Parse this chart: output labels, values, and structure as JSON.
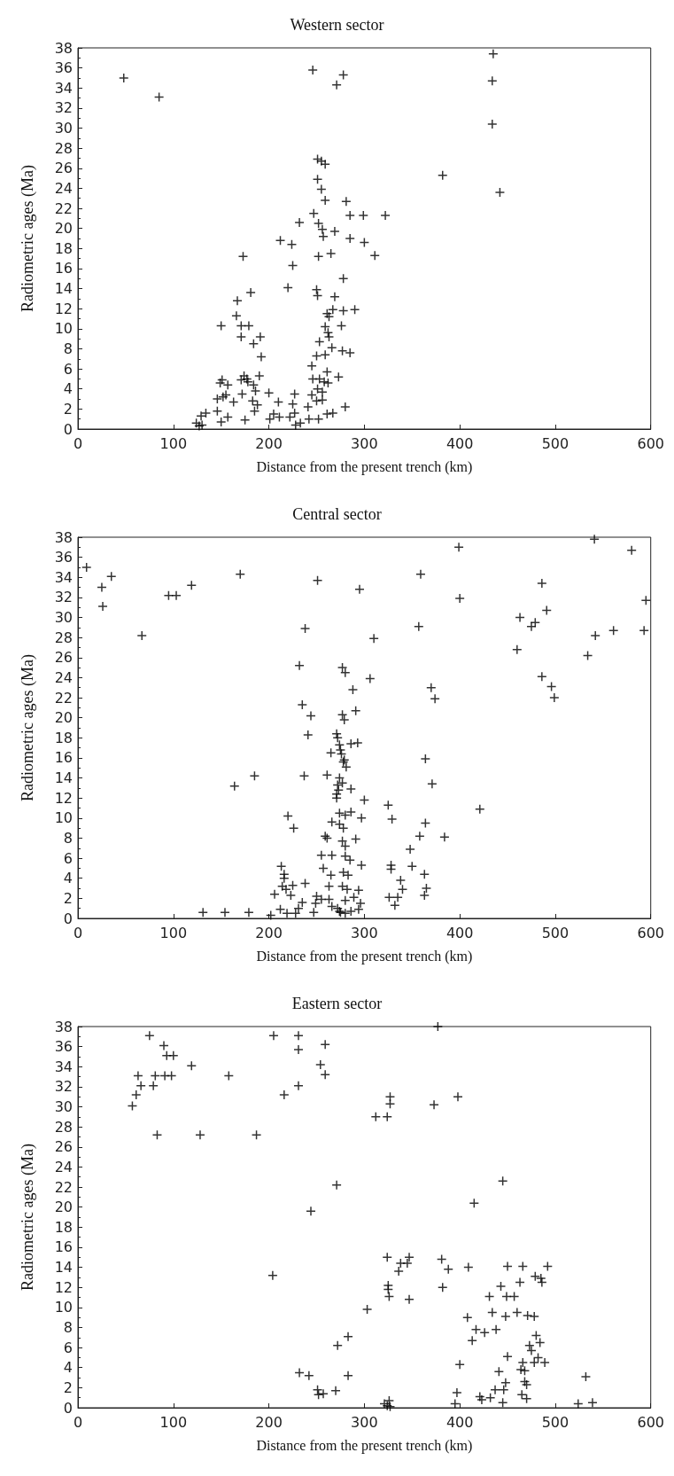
{
  "chart_data": [
    {
      "type": "scatter",
      "title": "Western sector",
      "xlabel": "Distance from the present trench (km)",
      "ylabel": "Radiometric ages (Ma)",
      "xlim": [
        0,
        600
      ],
      "xticks": [
        0,
        100,
        200,
        300,
        400,
        500,
        600
      ],
      "ylim": [
        0,
        38
      ],
      "yticks": [
        0,
        2,
        4,
        6,
        8,
        10,
        12,
        14,
        16,
        18,
        20,
        22,
        24,
        26,
        28,
        30,
        32,
        34,
        36,
        38
      ],
      "marker": "cross",
      "color": "#000000",
      "x": [
        48,
        85,
        246,
        278,
        271,
        435,
        434,
        434,
        382,
        442,
        281,
        285,
        299,
        322,
        285,
        300,
        311,
        278,
        278,
        290,
        285,
        280,
        251,
        255,
        259,
        251,
        255,
        259,
        247,
        232,
        252,
        256,
        269,
        257,
        212,
        224,
        252,
        265,
        173,
        225,
        220,
        250,
        251,
        269,
        181,
        167,
        166,
        171,
        179,
        150,
        171,
        191,
        184,
        192,
        267,
        261,
        263,
        259,
        253,
        262,
        263,
        276,
        259,
        250,
        266,
        277,
        245,
        261,
        273,
        246,
        253,
        258,
        262,
        251,
        245,
        256,
        250,
        241,
        256,
        252,
        261,
        267,
        242,
        233,
        228,
        222,
        227,
        225,
        227,
        211,
        205,
        201,
        210,
        200,
        188,
        183,
        186,
        190,
        184,
        178,
        174,
        171,
        177,
        172,
        163,
        152,
        146,
        155,
        149,
        151,
        157,
        146,
        157,
        150,
        175,
        185,
        134,
        129,
        124,
        127,
        130
      ],
      "values": [
        35.0,
        33.1,
        35.8,
        35.3,
        34.3,
        37.4,
        34.7,
        30.4,
        25.3,
        23.6,
        22.7,
        21.3,
        21.3,
        21.3,
        19.0,
        18.6,
        17.3,
        15.0,
        11.8,
        11.9,
        7.6,
        2.2,
        26.9,
        26.7,
        26.4,
        24.9,
        23.9,
        22.8,
        21.5,
        20.6,
        20.5,
        19.9,
        19.7,
        19.2,
        18.8,
        18.4,
        17.2,
        17.5,
        17.2,
        16.3,
        14.1,
        13.9,
        13.3,
        13.2,
        13.6,
        12.8,
        11.3,
        10.3,
        10.3,
        10.3,
        9.2,
        9.2,
        8.5,
        7.2,
        11.9,
        11.5,
        11.2,
        10.2,
        8.7,
        9.6,
        9.2,
        10.3,
        7.4,
        7.3,
        8.1,
        7.8,
        6.3,
        5.7,
        5.2,
        5.0,
        5.0,
        4.7,
        4.6,
        4.0,
        3.4,
        3.7,
        2.8,
        2.2,
        2.9,
        1.0,
        1.5,
        1.6,
        1.0,
        0.6,
        0.4,
        1.2,
        1.6,
        2.5,
        3.5,
        1.2,
        1.5,
        1.0,
        2.7,
        3.6,
        2.4,
        2.8,
        3.8,
        5.3,
        4.4,
        4.7,
        5.3,
        4.9,
        5.0,
        3.5,
        2.7,
        3.2,
        3.0,
        3.4,
        4.6,
        4.9,
        4.4,
        1.8,
        1.2,
        0.7,
        0.9,
        1.8,
        1.6,
        1.3,
        0.6,
        0.3,
        0.4
      ]
    },
    {
      "type": "scatter",
      "title": "Central sector",
      "xlabel": "Distance from the present trench (km)",
      "ylabel": "Radiometric ages (Ma)",
      "xlim": [
        0,
        600
      ],
      "xticks": [
        0,
        100,
        200,
        300,
        400,
        500,
        600
      ],
      "ylim": [
        0,
        38
      ],
      "yticks": [
        0,
        2,
        4,
        6,
        8,
        10,
        12,
        14,
        16,
        18,
        20,
        22,
        24,
        26,
        28,
        30,
        32,
        34,
        36,
        38
      ],
      "marker": "cross",
      "color": "#000000",
      "x": [
        9,
        25,
        35,
        26,
        67,
        95,
        103,
        119,
        170,
        251,
        238,
        232,
        277,
        235,
        244,
        277,
        241,
        271,
        274,
        265,
        276,
        278,
        164,
        185,
        237,
        261,
        274,
        272,
        271,
        220,
        226,
        274,
        280,
        266,
        274,
        278,
        277,
        259,
        261,
        255,
        266,
        280,
        257,
        265,
        278,
        213,
        216,
        216,
        214,
        218,
        225,
        223,
        206,
        238,
        263,
        277,
        250,
        255,
        263,
        249,
        235,
        231,
        247,
        212,
        219,
        228,
        202,
        131,
        154,
        179,
        266,
        272,
        275,
        280,
        541,
        399,
        359,
        486,
        295,
        400,
        491,
        463,
        479,
        475,
        357,
        542,
        310,
        460,
        534,
        280,
        306,
        486,
        496,
        499,
        370,
        374,
        288,
        291,
        279,
        272,
        286,
        293,
        275,
        279,
        281,
        364,
        371,
        277,
        273,
        286,
        271,
        300,
        325,
        421,
        329,
        364,
        358,
        384,
        348,
        350,
        328,
        328,
        338,
        340,
        363,
        365,
        363,
        326,
        335,
        332,
        286,
        297,
        291,
        280,
        285,
        297,
        283,
        282,
        294,
        289,
        296,
        294,
        286,
        280,
        274,
        580,
        595,
        593,
        561
      ],
      "values": [
        35.0,
        33.0,
        34.1,
        31.1,
        28.2,
        32.2,
        32.2,
        33.2,
        34.3,
        33.7,
        28.9,
        25.2,
        25.0,
        21.3,
        20.2,
        20.3,
        18.3,
        18.4,
        17.3,
        16.5,
        16.4,
        15.6,
        13.2,
        14.2,
        14.2,
        14.3,
        14.0,
        13.3,
        12.4,
        10.2,
        9.0,
        10.5,
        10.3,
        9.6,
        9.4,
        9.0,
        7.7,
        8.2,
        8.0,
        6.3,
        6.3,
        6.2,
        5.0,
        4.3,
        4.6,
        5.2,
        4.4,
        4.0,
        3.2,
        2.9,
        3.3,
        2.3,
        2.4,
        3.5,
        3.2,
        3.2,
        2.2,
        1.9,
        1.9,
        1.5,
        1.6,
        1.0,
        0.6,
        0.9,
        0.5,
        0.5,
        0.3,
        0.6,
        0.6,
        0.6,
        1.2,
        1.0,
        0.6,
        1.8,
        37.8,
        37.0,
        34.3,
        33.4,
        32.8,
        31.9,
        30.7,
        30.0,
        29.5,
        29.1,
        29.1,
        28.2,
        27.9,
        26.8,
        26.2,
        24.5,
        23.9,
        24.1,
        23.1,
        22.0,
        23.0,
        21.9,
        22.8,
        20.7,
        19.8,
        18.0,
        17.4,
        17.5,
        16.8,
        15.8,
        15.1,
        15.9,
        13.4,
        13.5,
        12.8,
        12.9,
        12.0,
        11.8,
        11.3,
        10.9,
        9.9,
        9.5,
        8.2,
        8.1,
        6.9,
        5.2,
        5.3,
        4.9,
        3.8,
        2.9,
        4.4,
        3.0,
        2.3,
        2.1,
        2.1,
        1.3,
        10.6,
        10.0,
        7.9,
        7.2,
        5.8,
        5.3,
        4.3,
        2.9,
        2.8,
        2.1,
        1.5,
        0.9,
        0.7,
        0.5,
        0.7,
        36.7,
        31.7,
        28.7,
        28.7
      ]
    },
    {
      "type": "scatter",
      "title": "Eastern sector",
      "xlabel": "Distance from the present trench (km)",
      "ylabel": "Radiometric ages (Ma)",
      "xlim": [
        0,
        600
      ],
      "xticks": [
        0,
        100,
        200,
        300,
        400,
        500,
        600
      ],
      "ylim": [
        0,
        38
      ],
      "yticks": [
        0,
        2,
        4,
        6,
        8,
        10,
        12,
        14,
        16,
        18,
        20,
        22,
        24,
        26,
        28,
        30,
        32,
        34,
        36,
        38
      ],
      "marker": "cross",
      "color": "#000000",
      "x": [
        57,
        61,
        63,
        66,
        75,
        79,
        81,
        83,
        90,
        91,
        93,
        100,
        98,
        119,
        128,
        158,
        187,
        205,
        216,
        231,
        231,
        231,
        254,
        259,
        259,
        271,
        244,
        204,
        272,
        232,
        242,
        251,
        257,
        252,
        270,
        283,
        283,
        377,
        327,
        327,
        312,
        324,
        373,
        398,
        445,
        415,
        324,
        347,
        345,
        338,
        336,
        381,
        388,
        409,
        450,
        466,
        492,
        479,
        485,
        486,
        463,
        325,
        325,
        326,
        347,
        382,
        443,
        431,
        449,
        457,
        303,
        434,
        448,
        408,
        460,
        471,
        478,
        417,
        426,
        438,
        413,
        480,
        484,
        473,
        475,
        482,
        478,
        489,
        450,
        466,
        464,
        468,
        468,
        470,
        465,
        470,
        441,
        448,
        446,
        437,
        432,
        423,
        421,
        445,
        400,
        397,
        395,
        321,
        326,
        327,
        324,
        532,
        524,
        539
      ],
      "values": [
        30.1,
        31.2,
        33.1,
        32.1,
        37.1,
        32.1,
        33.1,
        27.2,
        36.1,
        33.1,
        35.1,
        35.1,
        33.1,
        34.1,
        27.2,
        33.1,
        27.2,
        37.1,
        31.2,
        37.1,
        35.7,
        32.1,
        34.2,
        36.2,
        33.2,
        22.2,
        19.6,
        13.2,
        6.2,
        3.5,
        3.2,
        1.8,
        1.4,
        1.3,
        1.7,
        3.2,
        7.1,
        38.0,
        31.0,
        30.3,
        29.0,
        29.0,
        30.2,
        31.0,
        22.6,
        20.4,
        15.0,
        15.0,
        14.4,
        14.4,
        13.6,
        14.8,
        13.8,
        14.0,
        14.1,
        14.1,
        14.1,
        13.1,
        12.9,
        12.5,
        12.5,
        12.2,
        11.8,
        11.1,
        10.8,
        12.0,
        12.1,
        11.1,
        11.1,
        11.1,
        9.8,
        9.5,
        9.1,
        9.0,
        9.5,
        9.2,
        9.1,
        7.8,
        7.5,
        7.8,
        6.7,
        7.2,
        6.5,
        6.2,
        5.7,
        5.0,
        4.5,
        4.5,
        5.1,
        4.5,
        3.8,
        3.7,
        2.6,
        2.3,
        1.3,
        0.9,
        3.6,
        2.5,
        1.8,
        1.8,
        1.0,
        0.8,
        1.1,
        0.5,
        4.3,
        1.5,
        0.4,
        0.4,
        0.7,
        0.1,
        0.2,
        3.1,
        0.4,
        0.5
      ]
    }
  ]
}
